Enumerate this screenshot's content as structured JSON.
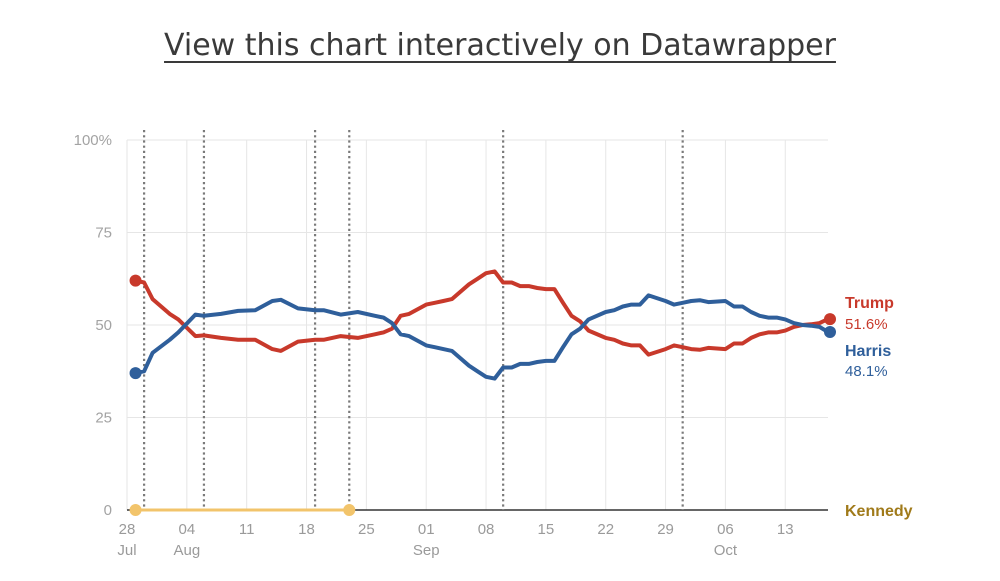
{
  "header": {
    "link_text": "View this chart interactively on Datawrapper"
  },
  "colors": {
    "trump": "#c8392b",
    "harris": "#2f5f9b",
    "kennedy": "#f2c46b",
    "kennedy_label": "#a07a1a",
    "grid": "#e6e6e6",
    "event_line": "#7a7a7a"
  },
  "chart_data": {
    "type": "line",
    "ylim": [
      0,
      100
    ],
    "yticks": [
      0,
      25,
      50,
      75,
      100
    ],
    "ytick_labels": [
      "0",
      "25",
      "50",
      "75",
      "100%"
    ],
    "xlim": [
      "2024-07-28",
      "2024-10-18"
    ],
    "xticks": [
      {
        "date": "2024-07-28",
        "label": "28",
        "sub": "Jul"
      },
      {
        "date": "2024-08-04",
        "label": "04",
        "sub": "Aug"
      },
      {
        "date": "2024-08-11",
        "label": "11",
        "sub": ""
      },
      {
        "date": "2024-08-18",
        "label": "18",
        "sub": ""
      },
      {
        "date": "2024-08-25",
        "label": "25",
        "sub": ""
      },
      {
        "date": "2024-09-01",
        "label": "01",
        "sub": "Sep"
      },
      {
        "date": "2024-09-08",
        "label": "08",
        "sub": ""
      },
      {
        "date": "2024-09-15",
        "label": "15",
        "sub": ""
      },
      {
        "date": "2024-09-22",
        "label": "22",
        "sub": ""
      },
      {
        "date": "2024-09-29",
        "label": "29",
        "sub": ""
      },
      {
        "date": "2024-10-06",
        "label": "06",
        "sub": "Oct"
      },
      {
        "date": "2024-10-13",
        "label": "13",
        "sub": ""
      }
    ],
    "event_lines": [
      "2024-07-30",
      "2024-08-06",
      "2024-08-19",
      "2024-08-23",
      "2024-09-10",
      "2024-10-01"
    ],
    "series": [
      {
        "name": "Trump",
        "value_label": "51.6%",
        "points": [
          [
            "2024-07-29",
            62
          ],
          [
            "2024-07-30",
            61.5
          ],
          [
            "2024-07-31",
            57
          ],
          [
            "2024-08-02",
            53
          ],
          [
            "2024-08-03",
            51.5
          ],
          [
            "2024-08-05",
            47
          ],
          [
            "2024-08-06",
            47.2
          ],
          [
            "2024-08-08",
            46.5
          ],
          [
            "2024-08-10",
            46
          ],
          [
            "2024-08-12",
            46
          ],
          [
            "2024-08-14",
            43.5
          ],
          [
            "2024-08-15",
            43
          ],
          [
            "2024-08-17",
            45.5
          ],
          [
            "2024-08-19",
            46
          ],
          [
            "2024-08-20",
            46
          ],
          [
            "2024-08-22",
            47
          ],
          [
            "2024-08-24",
            46.5
          ],
          [
            "2024-08-26",
            47.5
          ],
          [
            "2024-08-27",
            48
          ],
          [
            "2024-08-28",
            49
          ],
          [
            "2024-08-29",
            52.5
          ],
          [
            "2024-08-30",
            53
          ],
          [
            "2024-09-01",
            55.5
          ],
          [
            "2024-09-02",
            56
          ],
          [
            "2024-09-03",
            56.5
          ],
          [
            "2024-09-04",
            57
          ],
          [
            "2024-09-05",
            59
          ],
          [
            "2024-09-06",
            61
          ],
          [
            "2024-09-07",
            62.5
          ],
          [
            "2024-09-08",
            64
          ],
          [
            "2024-09-09",
            64.5
          ],
          [
            "2024-09-10",
            61.5
          ],
          [
            "2024-09-11",
            61.5
          ],
          [
            "2024-09-12",
            60.5
          ],
          [
            "2024-09-13",
            60.5
          ],
          [
            "2024-09-14",
            60
          ],
          [
            "2024-09-15",
            59.7
          ],
          [
            "2024-09-16",
            59.7
          ],
          [
            "2024-09-17",
            56
          ],
          [
            "2024-09-18",
            52.5
          ],
          [
            "2024-09-19",
            51
          ],
          [
            "2024-09-20",
            48.5
          ],
          [
            "2024-09-22",
            46.5
          ],
          [
            "2024-09-23",
            46
          ],
          [
            "2024-09-24",
            45
          ],
          [
            "2024-09-25",
            44.5
          ],
          [
            "2024-09-26",
            44.5
          ],
          [
            "2024-09-27",
            42
          ],
          [
            "2024-09-29",
            43.5
          ],
          [
            "2024-09-30",
            44.5
          ],
          [
            "2024-10-01",
            44
          ],
          [
            "2024-10-02",
            43.5
          ],
          [
            "2024-10-03",
            43.3
          ],
          [
            "2024-10-04",
            43.8
          ],
          [
            "2024-10-06",
            43.5
          ],
          [
            "2024-10-07",
            45
          ],
          [
            "2024-10-08",
            45
          ],
          [
            "2024-10-09",
            46.5
          ],
          [
            "2024-10-10",
            47.5
          ],
          [
            "2024-10-11",
            48
          ],
          [
            "2024-10-12",
            48
          ],
          [
            "2024-10-13",
            48.5
          ],
          [
            "2024-10-14",
            49.5
          ],
          [
            "2024-10-15",
            50
          ],
          [
            "2024-10-16",
            50.2
          ],
          [
            "2024-10-17",
            50.5
          ],
          [
            "2024-10-18",
            51.6
          ]
        ]
      },
      {
        "name": "Harris",
        "value_label": "48.1%",
        "points": [
          [
            "2024-07-29",
            37
          ],
          [
            "2024-07-30",
            37.5
          ],
          [
            "2024-07-31",
            42.5
          ],
          [
            "2024-08-02",
            46
          ],
          [
            "2024-08-03",
            48
          ],
          [
            "2024-08-05",
            52.8
          ],
          [
            "2024-08-06",
            52.5
          ],
          [
            "2024-08-08",
            53
          ],
          [
            "2024-08-10",
            53.8
          ],
          [
            "2024-08-12",
            54
          ],
          [
            "2024-08-14",
            56.5
          ],
          [
            "2024-08-15",
            56.8
          ],
          [
            "2024-08-17",
            54.5
          ],
          [
            "2024-08-19",
            54
          ],
          [
            "2024-08-20",
            54
          ],
          [
            "2024-08-22",
            52.8
          ],
          [
            "2024-08-24",
            53.5
          ],
          [
            "2024-08-26",
            52.5
          ],
          [
            "2024-08-27",
            52
          ],
          [
            "2024-08-28",
            50.5
          ],
          [
            "2024-08-29",
            47.5
          ],
          [
            "2024-08-30",
            47
          ],
          [
            "2024-09-01",
            44.5
          ],
          [
            "2024-09-02",
            44
          ],
          [
            "2024-09-03",
            43.5
          ],
          [
            "2024-09-04",
            43
          ],
          [
            "2024-09-05",
            41
          ],
          [
            "2024-09-06",
            39
          ],
          [
            "2024-09-07",
            37.5
          ],
          [
            "2024-09-08",
            36
          ],
          [
            "2024-09-09",
            35.5
          ],
          [
            "2024-09-10",
            38.5
          ],
          [
            "2024-09-11",
            38.5
          ],
          [
            "2024-09-12",
            39.5
          ],
          [
            "2024-09-13",
            39.5
          ],
          [
            "2024-09-14",
            40
          ],
          [
            "2024-09-15",
            40.3
          ],
          [
            "2024-09-16",
            40.3
          ],
          [
            "2024-09-17",
            44
          ],
          [
            "2024-09-18",
            47.5
          ],
          [
            "2024-09-19",
            49
          ],
          [
            "2024-09-20",
            51.5
          ],
          [
            "2024-09-22",
            53.5
          ],
          [
            "2024-09-23",
            54
          ],
          [
            "2024-09-24",
            55
          ],
          [
            "2024-09-25",
            55.5
          ],
          [
            "2024-09-26",
            55.5
          ],
          [
            "2024-09-27",
            58
          ],
          [
            "2024-09-29",
            56.5
          ],
          [
            "2024-09-30",
            55.5
          ],
          [
            "2024-10-01",
            56
          ],
          [
            "2024-10-02",
            56.5
          ],
          [
            "2024-10-03",
            56.7
          ],
          [
            "2024-10-04",
            56.2
          ],
          [
            "2024-10-06",
            56.5
          ],
          [
            "2024-10-07",
            55
          ],
          [
            "2024-10-08",
            55
          ],
          [
            "2024-10-09",
            53.5
          ],
          [
            "2024-10-10",
            52.5
          ],
          [
            "2024-10-11",
            52
          ],
          [
            "2024-10-12",
            52
          ],
          [
            "2024-10-13",
            51.5
          ],
          [
            "2024-10-14",
            50.5
          ],
          [
            "2024-10-15",
            50
          ],
          [
            "2024-10-16",
            49.8
          ],
          [
            "2024-10-17",
            49.5
          ],
          [
            "2024-10-18",
            48.1
          ]
        ]
      },
      {
        "name": "Kennedy",
        "value_label": "",
        "points": [
          [
            "2024-07-29",
            0
          ],
          [
            "2024-08-23",
            0
          ]
        ]
      }
    ]
  }
}
